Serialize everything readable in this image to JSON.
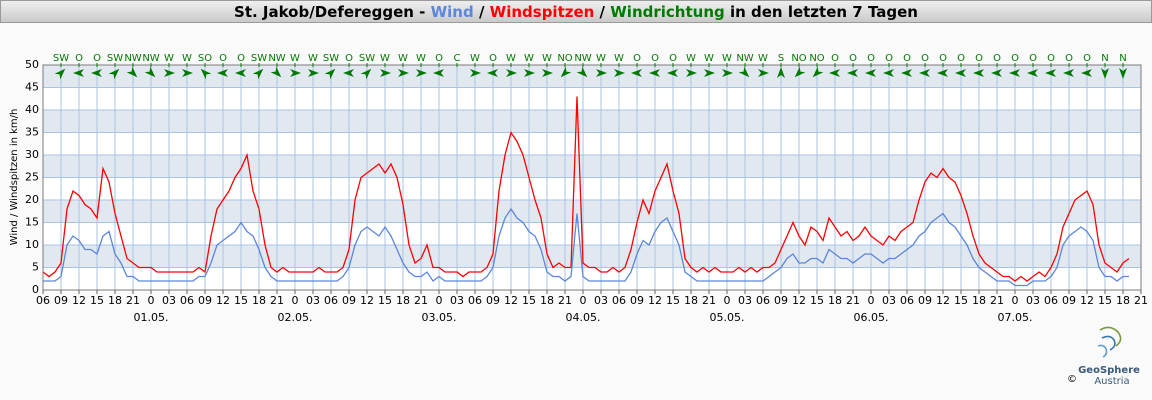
{
  "chart_data": {
    "type": "line",
    "title_prefix": "St. Jakob/Defereggen - ",
    "title_separator": " / ",
    "title_suffix": " in den letzten 7 Tagen",
    "ylabel": "Wind / Windspitzen in km/h",
    "ylim": [
      0,
      50
    ],
    "yticks": [
      0,
      5,
      10,
      15,
      20,
      25,
      30,
      35,
      40,
      45,
      50
    ],
    "xlim": [
      6,
      189
    ],
    "xticks": [
      {
        "value": 6,
        "label": "06"
      },
      {
        "value": 9,
        "label": "09"
      },
      {
        "value": 12,
        "label": "12"
      },
      {
        "value": 15,
        "label": "15"
      },
      {
        "value": 18,
        "label": "18"
      },
      {
        "value": 21,
        "label": "21"
      },
      {
        "value": 24,
        "label": "0"
      },
      {
        "value": 27,
        "label": "03"
      },
      {
        "value": 30,
        "label": "06"
      },
      {
        "value": 33,
        "label": "09"
      },
      {
        "value": 36,
        "label": "12"
      },
      {
        "value": 39,
        "label": "15"
      },
      {
        "value": 42,
        "label": "18"
      },
      {
        "value": 45,
        "label": "21"
      },
      {
        "value": 48,
        "label": "0"
      },
      {
        "value": 51,
        "label": "03"
      },
      {
        "value": 54,
        "label": "06"
      },
      {
        "value": 57,
        "label": "09"
      },
      {
        "value": 60,
        "label": "12"
      },
      {
        "value": 63,
        "label": "15"
      },
      {
        "value": 66,
        "label": "18"
      },
      {
        "value": 69,
        "label": "21"
      },
      {
        "value": 72,
        "label": "0"
      },
      {
        "value": 75,
        "label": "03"
      },
      {
        "value": 78,
        "label": "06"
      },
      {
        "value": 81,
        "label": "09"
      },
      {
        "value": 84,
        "label": "12"
      },
      {
        "value": 87,
        "label": "15"
      },
      {
        "value": 90,
        "label": "18"
      },
      {
        "value": 93,
        "label": "21"
      },
      {
        "value": 96,
        "label": "0"
      },
      {
        "value": 99,
        "label": "03"
      },
      {
        "value": 102,
        "label": "06"
      },
      {
        "value": 105,
        "label": "09"
      },
      {
        "value": 108,
        "label": "12"
      },
      {
        "value": 111,
        "label": "15"
      },
      {
        "value": 114,
        "label": "18"
      },
      {
        "value": 117,
        "label": "21"
      },
      {
        "value": 120,
        "label": "0"
      },
      {
        "value": 123,
        "label": "03"
      },
      {
        "value": 126,
        "label": "06"
      },
      {
        "value": 129,
        "label": "09"
      },
      {
        "value": 132,
        "label": "12"
      },
      {
        "value": 135,
        "label": "15"
      },
      {
        "value": 138,
        "label": "18"
      },
      {
        "value": 141,
        "label": "21"
      },
      {
        "value": 144,
        "label": "0"
      },
      {
        "value": 147,
        "label": "03"
      },
      {
        "value": 150,
        "label": "06"
      },
      {
        "value": 153,
        "label": "09"
      },
      {
        "value": 156,
        "label": "12"
      },
      {
        "value": 159,
        "label": "15"
      },
      {
        "value": 162,
        "label": "18"
      },
      {
        "value": 165,
        "label": "21"
      },
      {
        "value": 168,
        "label": "0"
      },
      {
        "value": 171,
        "label": "03"
      },
      {
        "value": 174,
        "label": "06"
      },
      {
        "value": 177,
        "label": "09"
      },
      {
        "value": 180,
        "label": "12"
      },
      {
        "value": 183,
        "label": "15"
      },
      {
        "value": 186,
        "label": "18"
      },
      {
        "value": 189,
        "label": "21"
      }
    ],
    "day_labels": [
      {
        "value": 24,
        "label": "01.05."
      },
      {
        "value": 48,
        "label": "02.05."
      },
      {
        "value": 72,
        "label": "03.05."
      },
      {
        "value": 96,
        "label": "04.05."
      },
      {
        "value": 120,
        "label": "05.05."
      },
      {
        "value": 144,
        "label": "06.05."
      },
      {
        "value": 168,
        "label": "07.05."
      }
    ],
    "grid": true,
    "x": [
      6,
      7,
      8,
      9,
      10,
      11,
      12,
      13,
      14,
      15,
      16,
      17,
      18,
      19,
      20,
      21,
      22,
      23,
      24,
      25,
      26,
      27,
      28,
      29,
      30,
      31,
      32,
      33,
      34,
      35,
      36,
      37,
      38,
      39,
      40,
      41,
      42,
      43,
      44,
      45,
      46,
      47,
      48,
      49,
      50,
      51,
      52,
      53,
      54,
      55,
      56,
      57,
      58,
      59,
      60,
      61,
      62,
      63,
      64,
      65,
      66,
      67,
      68,
      69,
      70,
      71,
      72,
      73,
      74,
      75,
      76,
      77,
      78,
      79,
      80,
      81,
      82,
      83,
      84,
      85,
      86,
      87,
      88,
      89,
      90,
      91,
      92,
      93,
      94,
      95,
      96,
      97,
      98,
      99,
      100,
      101,
      102,
      103,
      104,
      105,
      106,
      107,
      108,
      109,
      110,
      111,
      112,
      113,
      114,
      115,
      116,
      117,
      118,
      119,
      120,
      121,
      122,
      123,
      124,
      125,
      126,
      127,
      128,
      129,
      130,
      131,
      132,
      133,
      134,
      135,
      136,
      137,
      138,
      139,
      140,
      141,
      142,
      143,
      144,
      145,
      146,
      147,
      148,
      149,
      150,
      151,
      152,
      153,
      154,
      155,
      156,
      157,
      158,
      159,
      160,
      161,
      162,
      163,
      164,
      165,
      166,
      167,
      168,
      169,
      170,
      171,
      172,
      173,
      174,
      175,
      176,
      177,
      178,
      179,
      180,
      181,
      182,
      183,
      184,
      185,
      186,
      187
    ],
    "series": [
      {
        "name": "Wind",
        "color": "#5b86dc",
        "values": [
          2,
          2,
          2,
          3,
          10,
          12,
          11,
          9,
          9,
          8,
          12,
          13,
          8,
          6,
          3,
          3,
          2,
          2,
          2,
          2,
          2,
          2,
          2,
          2,
          2,
          2,
          3,
          3,
          6,
          10,
          11,
          12,
          13,
          15,
          13,
          12,
          9,
          5,
          3,
          2,
          2,
          2,
          2,
          2,
          2,
          2,
          2,
          2,
          2,
          2,
          3,
          5,
          10,
          13,
          14,
          13,
          12,
          14,
          12,
          9,
          6,
          4,
          3,
          3,
          4,
          2,
          3,
          2,
          2,
          2,
          2,
          2,
          2,
          2,
          3,
          5,
          12,
          16,
          18,
          16,
          15,
          13,
          12,
          9,
          4,
          3,
          3,
          2,
          3,
          17,
          3,
          2,
          2,
          2,
          2,
          2,
          2,
          2,
          4,
          8,
          11,
          10,
          13,
          15,
          16,
          13,
          10,
          4,
          3,
          2,
          2,
          2,
          2,
          2,
          2,
          2,
          2,
          2,
          2,
          2,
          2,
          3,
          4,
          5,
          7,
          8,
          6,
          6,
          7,
          7,
          6,
          9,
          8,
          7,
          7,
          6,
          7,
          8,
          8,
          7,
          6,
          7,
          7,
          8,
          9,
          10,
          12,
          13,
          15,
          16,
          17,
          15,
          14,
          12,
          10,
          7,
          5,
          4,
          3,
          2,
          2,
          2,
          1,
          1,
          1,
          2,
          2,
          2,
          3,
          5,
          10,
          12,
          13,
          14,
          13,
          11,
          5,
          3,
          3,
          2,
          3,
          3
        ]
      },
      {
        "name": "Windspitzen",
        "color": "#ff0000",
        "values": [
          4,
          3,
          4,
          6,
          18,
          22,
          21,
          19,
          18,
          16,
          27,
          24,
          17,
          12,
          7,
          6,
          5,
          5,
          5,
          4,
          4,
          4,
          4,
          4,
          4,
          4,
          5,
          4,
          12,
          18,
          20,
          22,
          25,
          27,
          30,
          22,
          18,
          10,
          5,
          4,
          5,
          4,
          4,
          4,
          4,
          4,
          5,
          4,
          4,
          4,
          5,
          9,
          20,
          25,
          26,
          27,
          28,
          26,
          28,
          25,
          19,
          10,
          6,
          7,
          10,
          5,
          5,
          4,
          4,
          4,
          3,
          4,
          4,
          4,
          5,
          8,
          22,
          30,
          35,
          33,
          30,
          25,
          20,
          16,
          8,
          5,
          6,
          5,
          5,
          43,
          6,
          5,
          5,
          4,
          4,
          5,
          4,
          5,
          9,
          15,
          20,
          17,
          22,
          25,
          28,
          22,
          17,
          7,
          5,
          4,
          5,
          4,
          5,
          4,
          4,
          4,
          5,
          4,
          5,
          4,
          5,
          5,
          6,
          9,
          12,
          15,
          12,
          10,
          14,
          13,
          11,
          16,
          14,
          12,
          13,
          11,
          12,
          14,
          12,
          11,
          10,
          12,
          11,
          13,
          14,
          15,
          20,
          24,
          26,
          25,
          27,
          25,
          24,
          21,
          17,
          12,
          8,
          6,
          5,
          4,
          3,
          3,
          2,
          3,
          2,
          3,
          4,
          3,
          5,
          8,
          14,
          17,
          20,
          21,
          22,
          19,
          10,
          6,
          5,
          4,
          6,
          7
        ]
      }
    ],
    "wind_direction": {
      "name": "Windrichtung",
      "color": "#007a00",
      "x": [
        9,
        12,
        15,
        18,
        21,
        24,
        27,
        30,
        33,
        36,
        39,
        42,
        45,
        48,
        51,
        54,
        57,
        60,
        63,
        66,
        69,
        72,
        75,
        78,
        81,
        84,
        87,
        90,
        93,
        96,
        99,
        102,
        105,
        108,
        111,
        114,
        117,
        120,
        123,
        126,
        129,
        132,
        135,
        138,
        141,
        144,
        147,
        150,
        153,
        156,
        159,
        162,
        165,
        168,
        171,
        174,
        177,
        180,
        183,
        186
      ],
      "labels": [
        "SW",
        "O",
        "O",
        "SW",
        "NW",
        "NW",
        "W",
        "W",
        "SO",
        "O",
        "O",
        "SW",
        "NW",
        "W",
        "W",
        "SW",
        "O",
        "SW",
        "W",
        "W",
        "W",
        "O",
        "C",
        "W",
        "O",
        "W",
        "W",
        "W",
        "NO",
        "NW",
        "W",
        "W",
        "O",
        "O",
        "O",
        "W",
        "W",
        "W",
        "NW",
        "W",
        "S",
        "NO",
        "NO",
        "O",
        "O",
        "O",
        "O",
        "O",
        "O",
        "O",
        "O",
        "O",
        "O",
        "O",
        "O",
        "O",
        "O",
        "O",
        "N",
        "N"
      ]
    },
    "logo": {
      "name": "GeoSphere",
      "subtitle": "Austria",
      "copyright": "©"
    }
  }
}
